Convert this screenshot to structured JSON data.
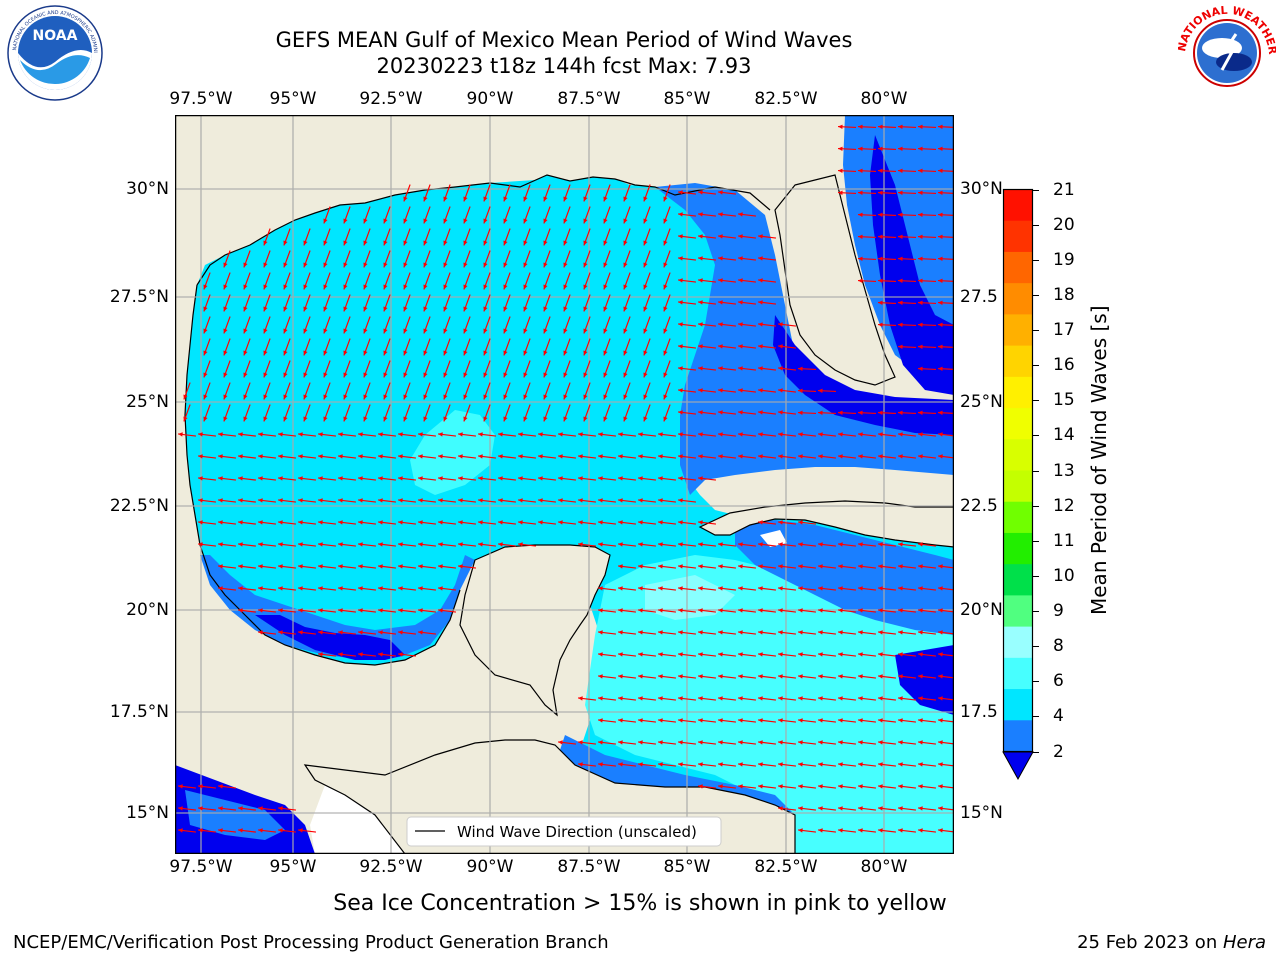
{
  "header": {
    "title_line1": "GEFS MEAN Gulf of Mexico Mean Period of Wind Waves",
    "title_line2": "20230223 t18z 144h fcst   Max: 7.93"
  },
  "logos": {
    "left": "NOAA",
    "left_ring": "NATIONAL OCEANIC AND ATMOSPHERIC ADMINISTRATION · U.S. DEPARTMENT OF COMMERCE",
    "right_ring": "NATIONAL WEATHER SERVICE"
  },
  "map": {
    "lon_ticks": [
      "97.5°W",
      "95°W",
      "92.5°W",
      "90°W",
      "87.5°W",
      "85°W",
      "82.5°W",
      "80°W"
    ],
    "lat_ticks_left": [
      "30°N",
      "27.5°N",
      "25°N",
      "22.5°N",
      "20°N",
      "17.5°N",
      "15°N"
    ],
    "lat_ticks_right": [
      "30°N",
      "27.5",
      "25°N",
      "22.5",
      "20°N",
      "17.5",
      "15°N"
    ],
    "legend_label": "Wind Wave Direction (unscaled)",
    "colors": {
      "land": "#efecdc",
      "c2_4": "#1a7fff",
      "c4_6": "#00e6ff",
      "c6_8": "#47ffff",
      "c8_9": "#99ffff",
      "below": "#0000ee",
      "arrow": "#ff0000"
    }
  },
  "colorbar": {
    "title": "Mean Period of Wind Waves [s]",
    "labels": [
      "21",
      "20",
      "19",
      "18",
      "17",
      "16",
      "15",
      "14",
      "13",
      "12",
      "11",
      "10",
      "9",
      "8",
      "6",
      "4",
      "2"
    ],
    "colors": [
      "#ff1100",
      "#ff3300",
      "#ff6600",
      "#ff8c00",
      "#ffb000",
      "#ffd400",
      "#fff000",
      "#f0ff00",
      "#d8ff00",
      "#c4ff00",
      "#70ff00",
      "#22ee00",
      "#00e04a",
      "#50ff80",
      "#99ffff",
      "#47ffff",
      "#00e6ff",
      "#1a7fff"
    ],
    "under_color": "#0000ee"
  },
  "caption": "Sea Ice Concentration > 15% is shown in pink to yellow",
  "footer": {
    "left": "NCEP/EMC/Verification Post Processing Product Generation Branch",
    "date": "25 Feb 2023 on ",
    "machine": "Hera"
  }
}
